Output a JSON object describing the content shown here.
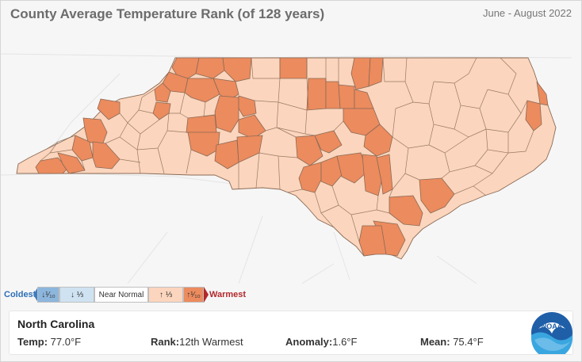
{
  "header": {
    "title": "County Average Temperature Rank (of 128 years)",
    "period": "June - August 2022"
  },
  "legend": {
    "coldest_label": "Coldest",
    "coldest_tenth": "↓¹⁄₁₀",
    "lower_third": "↓ ⅓",
    "near_normal": "Near Normal",
    "upper_third": "↑ ⅓",
    "warmest_tenth": "↑¹⁄₁₀",
    "warmest_label": "Warmest"
  },
  "colors": {
    "warmest_tenth": "#ec8b5e",
    "upper_third": "#fbd5bd",
    "near_normal": "#ffffff",
    "lower_third": "#cfe2f1",
    "coldest_tenth": "#8db6dc",
    "county_border": "#8a6a55"
  },
  "info": {
    "state": "North Carolina",
    "temp_label": "Temp:",
    "temp_value": "77.0°F",
    "rank_label": "Rank:",
    "rank_value": "12th Warmest",
    "anomaly_label": "Anomaly:",
    "anomaly_value": "1.6°F",
    "mean_label": "Mean:",
    "mean_value": "75.4°F"
  },
  "logo": {
    "text": "NOAA",
    "icon": "noaa-logo-icon"
  }
}
